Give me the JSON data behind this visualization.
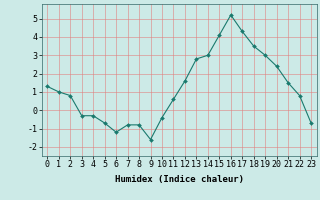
{
  "x": [
    0,
    1,
    2,
    3,
    4,
    5,
    6,
    7,
    8,
    9,
    10,
    11,
    12,
    13,
    14,
    15,
    16,
    17,
    18,
    19,
    20,
    21,
    22,
    23
  ],
  "y": [
    1.3,
    1.0,
    0.8,
    -0.3,
    -0.3,
    -0.7,
    -1.2,
    -0.8,
    -0.8,
    -1.6,
    -0.4,
    0.6,
    1.6,
    2.8,
    3.0,
    4.1,
    5.2,
    4.3,
    3.5,
    3.0,
    2.4,
    1.5,
    0.8,
    -0.7
  ],
  "line_color": "#1a7a6e",
  "marker": "D",
  "marker_size": 2.0,
  "bg_color": "#cceae7",
  "grid_color": "#e08080",
  "xlabel": "Humidex (Indice chaleur)",
  "xlim": [
    -0.5,
    23.5
  ],
  "ylim": [
    -2.5,
    5.8
  ],
  "yticks": [
    -2,
    -1,
    0,
    1,
    2,
    3,
    4,
    5
  ],
  "xticks": [
    0,
    1,
    2,
    3,
    4,
    5,
    6,
    7,
    8,
    9,
    10,
    11,
    12,
    13,
    14,
    15,
    16,
    17,
    18,
    19,
    20,
    21,
    22,
    23
  ],
  "xlabel_fontsize": 6.5,
  "tick_fontsize": 6.0
}
